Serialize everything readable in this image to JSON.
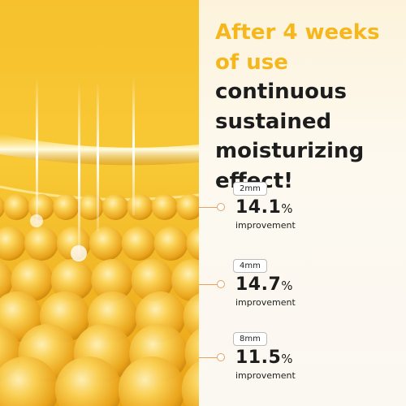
{
  "heading": {
    "highlight": "After 4 weeks of use",
    "rest": "continuous sustained moisturizing effect!"
  },
  "items": [
    {
      "depth": "2mm",
      "value": "14.1",
      "unit": "%",
      "caption": "improvement"
    },
    {
      "depth": "4mm",
      "value": "14.7",
      "unit": "%",
      "caption": "improvement"
    },
    {
      "depth": "8mm",
      "value": "11.5",
      "unit": "%",
      "caption": "improvement"
    }
  ]
}
